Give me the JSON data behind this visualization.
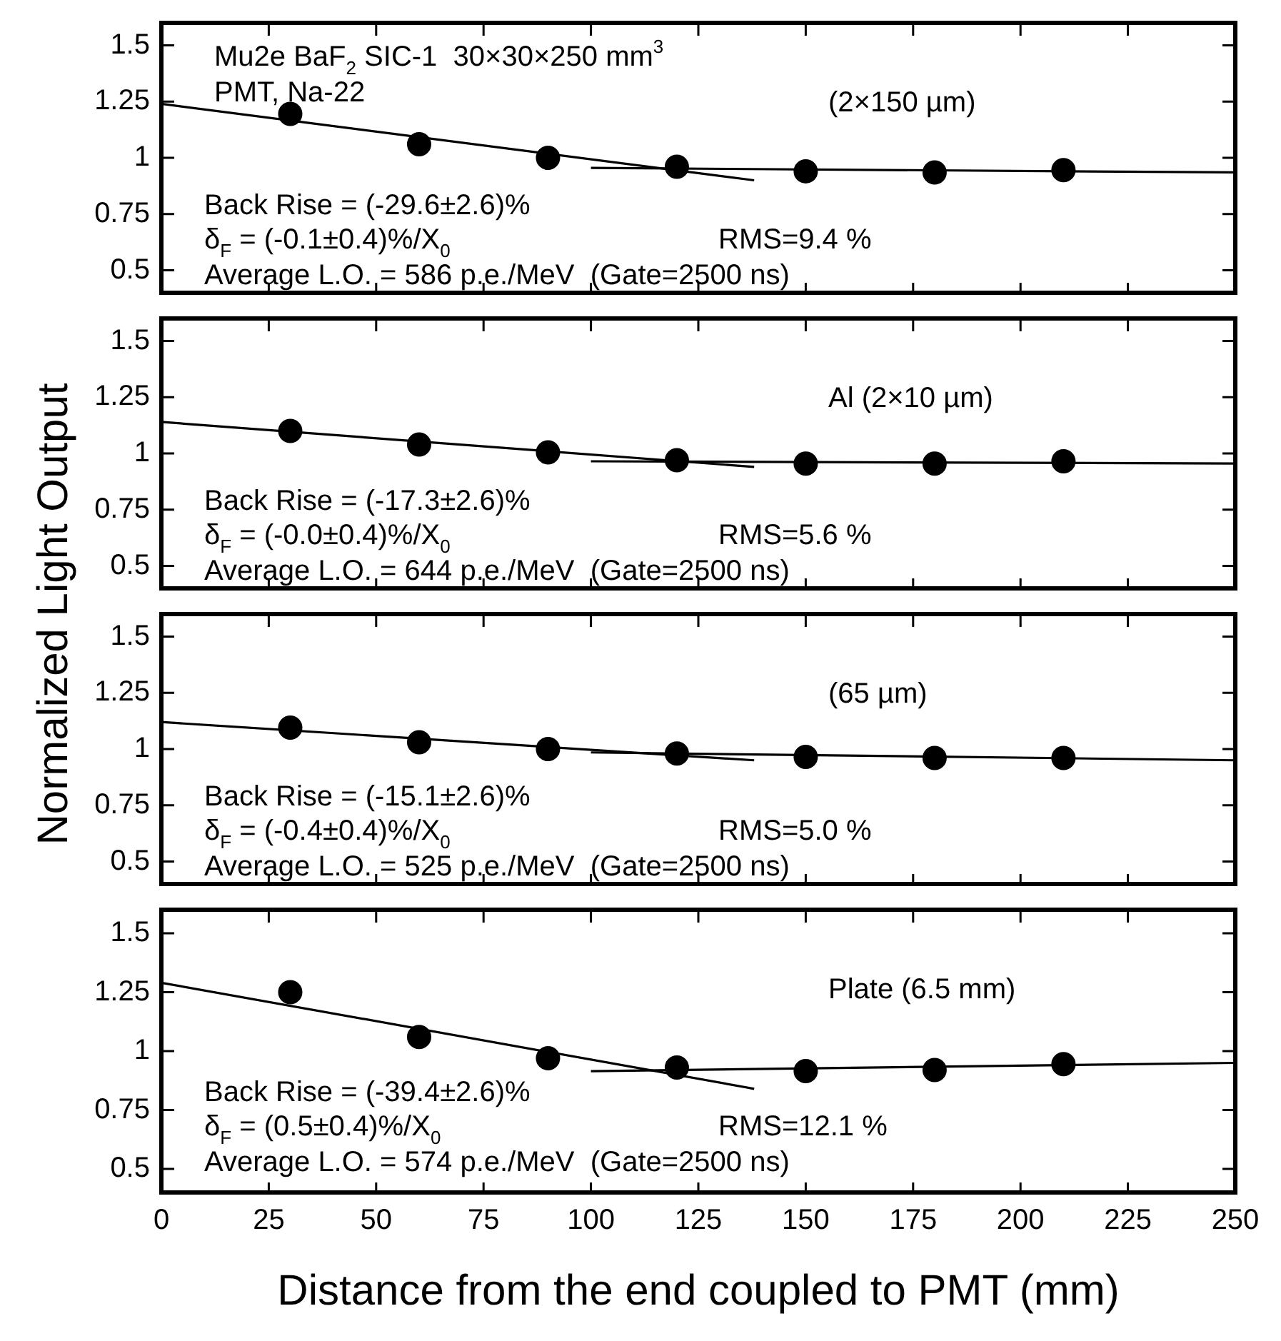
{
  "chart_data": [
    {
      "type": "scatter",
      "ylabel": "Normalized Light Output",
      "xlim": [
        0,
        250
      ],
      "xticks": [
        0,
        25,
        50,
        75,
        100,
        125,
        150,
        175,
        200,
        225,
        250
      ],
      "ylim": [
        0.4,
        1.6
      ],
      "yticks": [
        0.5,
        0.75,
        1,
        1.25,
        1.5
      ],
      "tick_labels": "y",
      "grid": false,
      "legend": false,
      "series": [
        {
          "type": "scatter",
          "color": "#000000",
          "marker": "circle",
          "x": [
            30,
            60,
            90,
            120,
            150,
            180,
            210
          ],
          "values": [
            1.195,
            1.06,
            1.0,
            0.96,
            0.94,
            0.935,
            0.945
          ]
        },
        {
          "type": "line",
          "color": "#000000",
          "marker": "none",
          "x": [
            0,
            138
          ],
          "values": [
            1.24,
            0.9
          ]
        },
        {
          "type": "line",
          "color": "#000000",
          "marker": "none",
          "x": [
            100,
            250
          ],
          "values": [
            0.955,
            0.935
          ]
        }
      ],
      "annotations": [
        "Mu2e BaF$_{2}$ SIC-1  30×30×250 mm$^{3}$",
        "PMT, Na-22",
        "(2×150 µm)",
        "Back Rise = (-29.6±2.6)%",
        "δ$_{F}$ = (-0.1±0.4)%/X$_{0}$",
        "RMS=9.4 %",
        "Average L.O. = 586 p.e./MeV  (Gate=2500 ns)"
      ]
    },
    {
      "type": "scatter",
      "xlim": [
        0,
        250
      ],
      "xticks": [
        0,
        25,
        50,
        75,
        100,
        125,
        150,
        175,
        200,
        225,
        250
      ],
      "ylim": [
        0.4,
        1.6
      ],
      "yticks": [
        0.5,
        0.75,
        1,
        1.25,
        1.5
      ],
      "tick_labels": "y",
      "grid": false,
      "legend": false,
      "series": [
        {
          "type": "scatter",
          "color": "#000000",
          "marker": "circle",
          "x": [
            30,
            60,
            90,
            120,
            150,
            180,
            210
          ],
          "values": [
            1.1,
            1.04,
            1.005,
            0.97,
            0.955,
            0.955,
            0.965
          ]
        },
        {
          "type": "line",
          "color": "#000000",
          "marker": "none",
          "x": [
            0,
            138
          ],
          "values": [
            1.14,
            0.94
          ]
        },
        {
          "type": "line",
          "color": "#000000",
          "marker": "none",
          "x": [
            100,
            250
          ],
          "values": [
            0.965,
            0.955
          ]
        }
      ],
      "annotations": [
        "Al (2×10 µm)",
        "Back Rise = (-17.3±2.6)%",
        "δ$_{F}$ = (-0.0±0.4)%/X$_{0}$",
        "RMS=5.6 %",
        "Average L.O. = 644 p.e./MeV  (Gate=2500 ns)"
      ]
    },
    {
      "type": "scatter",
      "xlim": [
        0,
        250
      ],
      "xticks": [
        0,
        25,
        50,
        75,
        100,
        125,
        150,
        175,
        200,
        225,
        250
      ],
      "ylim": [
        0.4,
        1.6
      ],
      "yticks": [
        0.5,
        0.75,
        1,
        1.25,
        1.5
      ],
      "tick_labels": "y",
      "grid": false,
      "legend": false,
      "series": [
        {
          "type": "scatter",
          "color": "#000000",
          "marker": "circle",
          "x": [
            30,
            60,
            90,
            120,
            150,
            180,
            210
          ],
          "values": [
            1.095,
            1.03,
            1.0,
            0.98,
            0.965,
            0.96,
            0.96
          ]
        },
        {
          "type": "line",
          "color": "#000000",
          "marker": "none",
          "x": [
            0,
            138
          ],
          "values": [
            1.12,
            0.95
          ]
        },
        {
          "type": "line",
          "color": "#000000",
          "marker": "none",
          "x": [
            100,
            250
          ],
          "values": [
            0.985,
            0.95
          ]
        }
      ],
      "annotations": [
        "(65 µm)",
        "Back Rise = (-15.1±2.6)%",
        "δ$_{F}$ = (-0.4±0.4)%/X$_{0}$",
        "RMS=5.0 %",
        "Average L.O. = 525 p.e./MeV  (Gate=2500 ns)"
      ]
    },
    {
      "type": "scatter",
      "xlabel": "Distance from the end coupled to PMT (mm)",
      "xlim": [
        0,
        250
      ],
      "xticks": [
        0,
        25,
        50,
        75,
        100,
        125,
        150,
        175,
        200,
        225,
        250
      ],
      "ylim": [
        0.4,
        1.6
      ],
      "yticks": [
        0.5,
        0.75,
        1,
        1.25,
        1.5
      ],
      "grid": false,
      "legend": false,
      "series": [
        {
          "type": "scatter",
          "color": "#000000",
          "marker": "circle",
          "x": [
            30,
            60,
            90,
            120,
            150,
            180,
            210
          ],
          "values": [
            1.25,
            1.06,
            0.97,
            0.93,
            0.915,
            0.92,
            0.945
          ]
        },
        {
          "type": "line",
          "color": "#000000",
          "marker": "none",
          "x": [
            0,
            138
          ],
          "values": [
            1.29,
            0.84
          ]
        },
        {
          "type": "line",
          "color": "#000000",
          "marker": "none",
          "x": [
            100,
            250
          ],
          "values": [
            0.915,
            0.95
          ]
        }
      ],
      "annotations": [
        "Plate (6.5 mm)",
        "Back Rise = (-39.4±2.6)%",
        "δ$_{F}$ = (0.5±0.4)%/X$_{0}$",
        "RMS=12.1 %",
        "Average L.O. = 574 p.e./MeV  (Gate=2500 ns)"
      ]
    }
  ]
}
